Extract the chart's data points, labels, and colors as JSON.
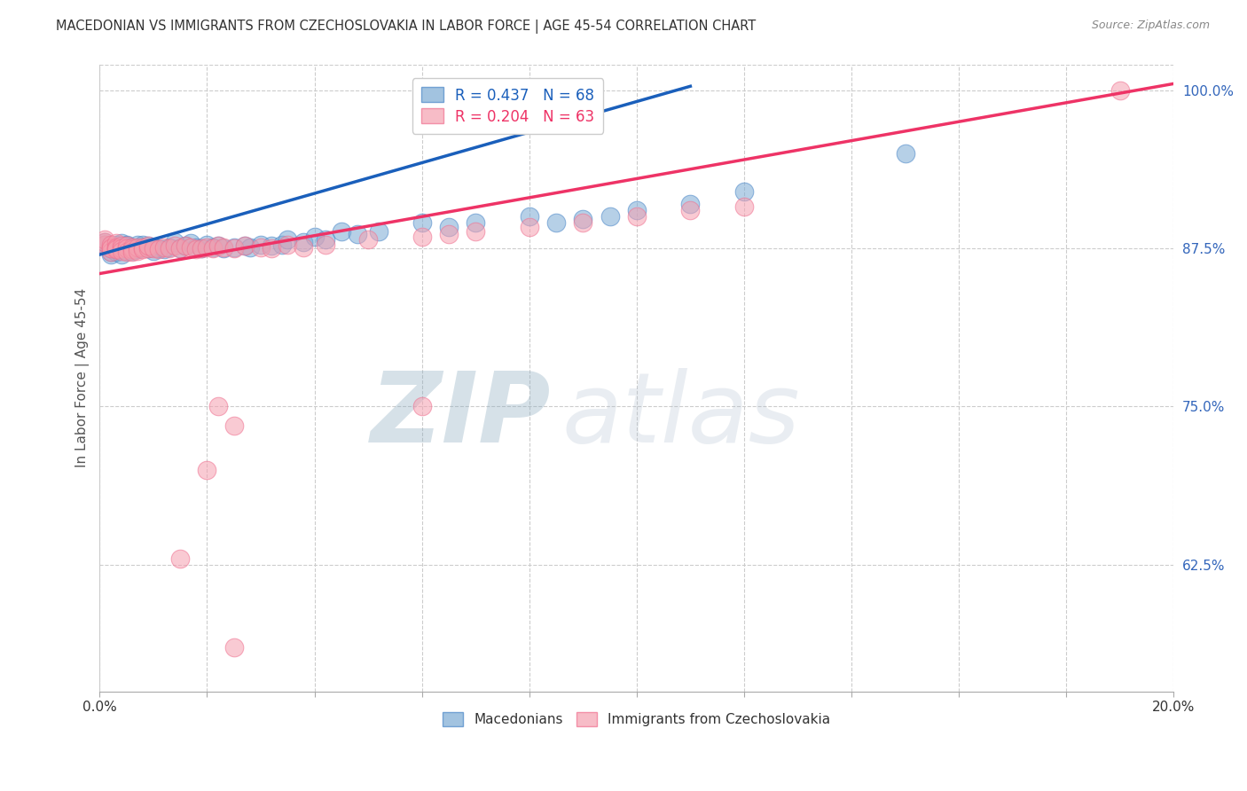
{
  "title": "MACEDONIAN VS IMMIGRANTS FROM CZECHOSLOVAKIA IN LABOR FORCE | AGE 45-54 CORRELATION CHART",
  "source": "Source: ZipAtlas.com",
  "ylabel": "In Labor Force | Age 45-54",
  "x_min": 0.0,
  "x_max": 0.2,
  "y_min": 0.525,
  "y_max": 1.02,
  "x_ticks": [
    0.0,
    0.02,
    0.04,
    0.06,
    0.08,
    0.1,
    0.12,
    0.14,
    0.16,
    0.18,
    0.2
  ],
  "x_tick_labels": [
    "0.0%",
    "",
    "",
    "",
    "",
    "",
    "",
    "",
    "",
    "",
    "20.0%"
  ],
  "y_ticks_right": [
    0.625,
    0.75,
    0.875,
    1.0
  ],
  "y_tick_labels_right": [
    "62.5%",
    "75.0%",
    "87.5%",
    "100.0%"
  ],
  "blue_color": "#7BAAD4",
  "pink_color": "#F5A0B0",
  "blue_edge_color": "#4A86C8",
  "pink_edge_color": "#F07090",
  "blue_line_color": "#1A5FBB",
  "pink_line_color": "#EE3366",
  "legend_blue_r": "R = 0.437",
  "legend_blue_n": "N = 68",
  "legend_pink_r": "R = 0.204",
  "legend_pink_n": "N = 63",
  "blue_scatter_x": [
    0.001,
    0.001,
    0.001,
    0.002,
    0.002,
    0.002,
    0.002,
    0.002,
    0.003,
    0.003,
    0.003,
    0.003,
    0.004,
    0.004,
    0.004,
    0.004,
    0.005,
    0.005,
    0.005,
    0.006,
    0.006,
    0.006,
    0.007,
    0.007,
    0.007,
    0.008,
    0.008,
    0.009,
    0.009,
    0.01,
    0.01,
    0.011,
    0.012,
    0.013,
    0.014,
    0.015,
    0.016,
    0.017,
    0.018,
    0.019,
    0.02,
    0.021,
    0.022,
    0.023,
    0.025,
    0.027,
    0.028,
    0.03,
    0.032,
    0.034,
    0.035,
    0.038,
    0.04,
    0.042,
    0.045,
    0.048,
    0.052,
    0.06,
    0.065,
    0.07,
    0.08,
    0.085,
    0.09,
    0.095,
    0.1,
    0.11,
    0.12,
    0.15
  ],
  "blue_scatter_y": [
    0.878,
    0.878,
    0.88,
    0.875,
    0.877,
    0.875,
    0.87,
    0.872,
    0.878,
    0.874,
    0.876,
    0.872,
    0.876,
    0.879,
    0.874,
    0.87,
    0.877,
    0.873,
    0.878,
    0.875,
    0.876,
    0.873,
    0.875,
    0.878,
    0.874,
    0.878,
    0.876,
    0.875,
    0.877,
    0.873,
    0.876,
    0.875,
    0.874,
    0.876,
    0.88,
    0.875,
    0.877,
    0.879,
    0.876,
    0.875,
    0.878,
    0.876,
    0.877,
    0.875,
    0.876,
    0.877,
    0.876,
    0.878,
    0.877,
    0.878,
    0.882,
    0.88,
    0.884,
    0.882,
    0.888,
    0.886,
    0.888,
    0.895,
    0.892,
    0.895,
    0.9,
    0.895,
    0.898,
    0.9,
    0.905,
    0.91,
    0.92,
    0.95
  ],
  "pink_scatter_x": [
    0.001,
    0.001,
    0.001,
    0.002,
    0.002,
    0.002,
    0.002,
    0.003,
    0.003,
    0.003,
    0.003,
    0.004,
    0.004,
    0.004,
    0.005,
    0.005,
    0.005,
    0.006,
    0.006,
    0.006,
    0.007,
    0.007,
    0.008,
    0.008,
    0.009,
    0.009,
    0.01,
    0.011,
    0.012,
    0.013,
    0.014,
    0.015,
    0.016,
    0.017,
    0.018,
    0.019,
    0.02,
    0.021,
    0.022,
    0.023,
    0.025,
    0.027,
    0.03,
    0.032,
    0.035,
    0.038,
    0.042,
    0.05,
    0.06,
    0.065,
    0.07,
    0.08,
    0.09,
    0.1,
    0.11,
    0.12,
    0.022,
    0.025,
    0.06,
    0.02,
    0.015,
    0.025,
    0.19
  ],
  "pink_scatter_y": [
    0.878,
    0.88,
    0.882,
    0.876,
    0.878,
    0.872,
    0.875,
    0.879,
    0.875,
    0.876,
    0.874,
    0.877,
    0.875,
    0.873,
    0.877,
    0.875,
    0.872,
    0.876,
    0.874,
    0.872,
    0.876,
    0.873,
    0.876,
    0.874,
    0.875,
    0.877,
    0.875,
    0.874,
    0.876,
    0.875,
    0.877,
    0.875,
    0.877,
    0.876,
    0.874,
    0.875,
    0.876,
    0.875,
    0.877,
    0.876,
    0.875,
    0.877,
    0.876,
    0.875,
    0.878,
    0.876,
    0.878,
    0.882,
    0.884,
    0.886,
    0.888,
    0.892,
    0.895,
    0.9,
    0.905,
    0.908,
    0.75,
    0.735,
    0.75,
    0.7,
    0.63,
    0.56,
    1.0
  ],
  "blue_line_x0": 0.0,
  "blue_line_x1": 0.11,
  "blue_line_y0": 0.87,
  "blue_line_y1": 1.003,
  "pink_line_x0": 0.0,
  "pink_line_x1": 0.2,
  "pink_line_y0": 0.855,
  "pink_line_y1": 1.005,
  "background_color": "#FFFFFF",
  "grid_color": "#CCCCCC",
  "title_color": "#333333",
  "axis_label_color": "#555555",
  "right_axis_label_color": "#3366BB",
  "watermark_color": "#C5D8EE",
  "watermark_alpha": 0.5
}
